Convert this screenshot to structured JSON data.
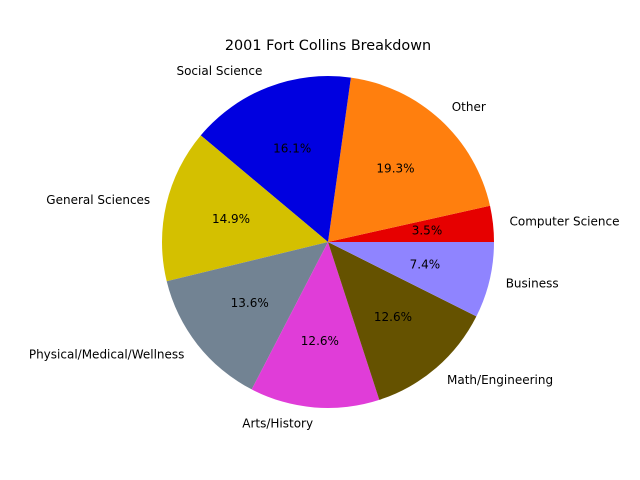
{
  "chart_data": {
    "type": "pie",
    "title": "2001 Fort Collins Breakdown",
    "start_angle_deg": 0,
    "direction": "counterclockwise",
    "slices": [
      {
        "label": "Computer Science",
        "value": 3.5,
        "pct_text": "3.5%",
        "color": "#e60000"
      },
      {
        "label": "Other",
        "value": 19.3,
        "pct_text": "19.3%",
        "color": "#ff7f0e"
      },
      {
        "label": "Social Science",
        "value": 16.1,
        "pct_text": "16.1%",
        "color": "#0000e0"
      },
      {
        "label": "General Sciences",
        "value": 14.9,
        "pct_text": "14.9%",
        "color": "#d4c000"
      },
      {
        "label": "Physical/Medical/Wellness",
        "value": 13.6,
        "pct_text": "13.6%",
        "color": "#728393"
      },
      {
        "label": "Arts/History",
        "value": 12.6,
        "pct_text": "12.6%",
        "color": "#e03dd8"
      },
      {
        "label": "Math/Engineering",
        "value": 12.6,
        "pct_text": "12.6%",
        "color": "#655200"
      },
      {
        "label": "Business",
        "value": 7.4,
        "pct_text": "7.4%",
        "color": "#8f84ff"
      }
    ]
  }
}
